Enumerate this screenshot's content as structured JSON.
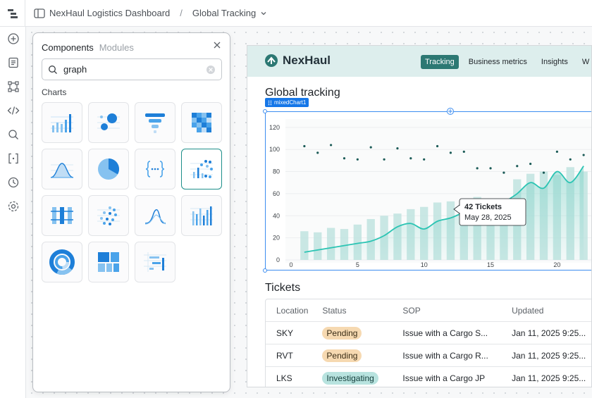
{
  "breadcrumb": {
    "project": "NexHaul Logistics Dashboard",
    "separator": "/",
    "page": "Global Tracking"
  },
  "rail_icons": [
    "add-icon",
    "page-icon",
    "components-icon",
    "code-icon",
    "search-icon",
    "state-icon",
    "history-icon",
    "settings-icon"
  ],
  "panel": {
    "tab_components": "Components",
    "tab_modules": "Modules",
    "search_value": "graph",
    "section_label": "Charts",
    "tiles": [
      "bar-chart",
      "bubble-chart",
      "funnel-chart",
      "heatmap-chart",
      "area-chart",
      "pie-chart",
      "json-chart",
      "mixed-chart",
      "box-plot",
      "scatter-chart",
      "line-chart",
      "sparkline-chart",
      "sunburst-chart",
      "treemap-chart",
      "gantt-chart"
    ]
  },
  "app": {
    "brand": "NexHaul",
    "nav": [
      "Tracking",
      "Business metrics",
      "Insights",
      "W"
    ],
    "chart_title": "Global tracking",
    "component_tag": "mixedChart1",
    "tooltip_title": "42 Tickets",
    "tooltip_date": "May 28, 2025",
    "tickets_title": "Tickets",
    "table": {
      "headers": [
        "Location",
        "Status",
        "SOP",
        "Updated"
      ],
      "rows": [
        {
          "location": "SKY",
          "status": "Pending",
          "sop": "Issue with a Cargo S...",
          "updated": "Jan 11, 2025 9:25..."
        },
        {
          "location": "RVT",
          "status": "Pending",
          "sop": "Issue with a Cargo R...",
          "updated": "Jan 11, 2025 9:25..."
        },
        {
          "location": "LKS",
          "status": "Investigating",
          "sop": "Issue with a Cargo JP",
          "updated": "Jan 11, 2025 9:25..."
        }
      ]
    }
  },
  "chart_data": {
    "type": "bar",
    "x": [
      1,
      2,
      3,
      4,
      5,
      6,
      7,
      8,
      9,
      10,
      11,
      12,
      13,
      14,
      15,
      16,
      17,
      18,
      19,
      20,
      21,
      22
    ],
    "series": [
      {
        "type": "bar",
        "values": [
          26,
          25,
          29,
          28,
          32,
          37,
          40,
          42,
          46,
          48,
          52,
          53,
          54,
          57,
          54,
          53,
          73,
          78,
          80,
          77,
          84,
          80
        ]
      },
      {
        "type": "line",
        "values": [
          7,
          9,
          11,
          13,
          15,
          17,
          22,
          30,
          33,
          28,
          35,
          38,
          43,
          46,
          44,
          52,
          60,
          70,
          65,
          80,
          70,
          85
        ]
      },
      {
        "type": "scatter",
        "values": [
          103,
          97,
          104,
          92,
          91,
          102,
          91,
          101,
          92,
          91,
          103,
          97,
          98,
          83,
          83,
          79,
          85,
          87,
          79,
          98,
          91,
          95
        ]
      }
    ],
    "xticks": [
      0,
      5,
      10,
      15,
      20
    ],
    "yticks": [
      0,
      20,
      40,
      60,
      80,
      100,
      120
    ],
    "ylim": [
      0,
      125
    ],
    "xlim": [
      0,
      23
    ],
    "grid": true,
    "colors": {
      "bar": "#bfe3df",
      "line": "#2bc4b3",
      "dot": "#1b5b57",
      "area": "#7fd3c8"
    }
  }
}
